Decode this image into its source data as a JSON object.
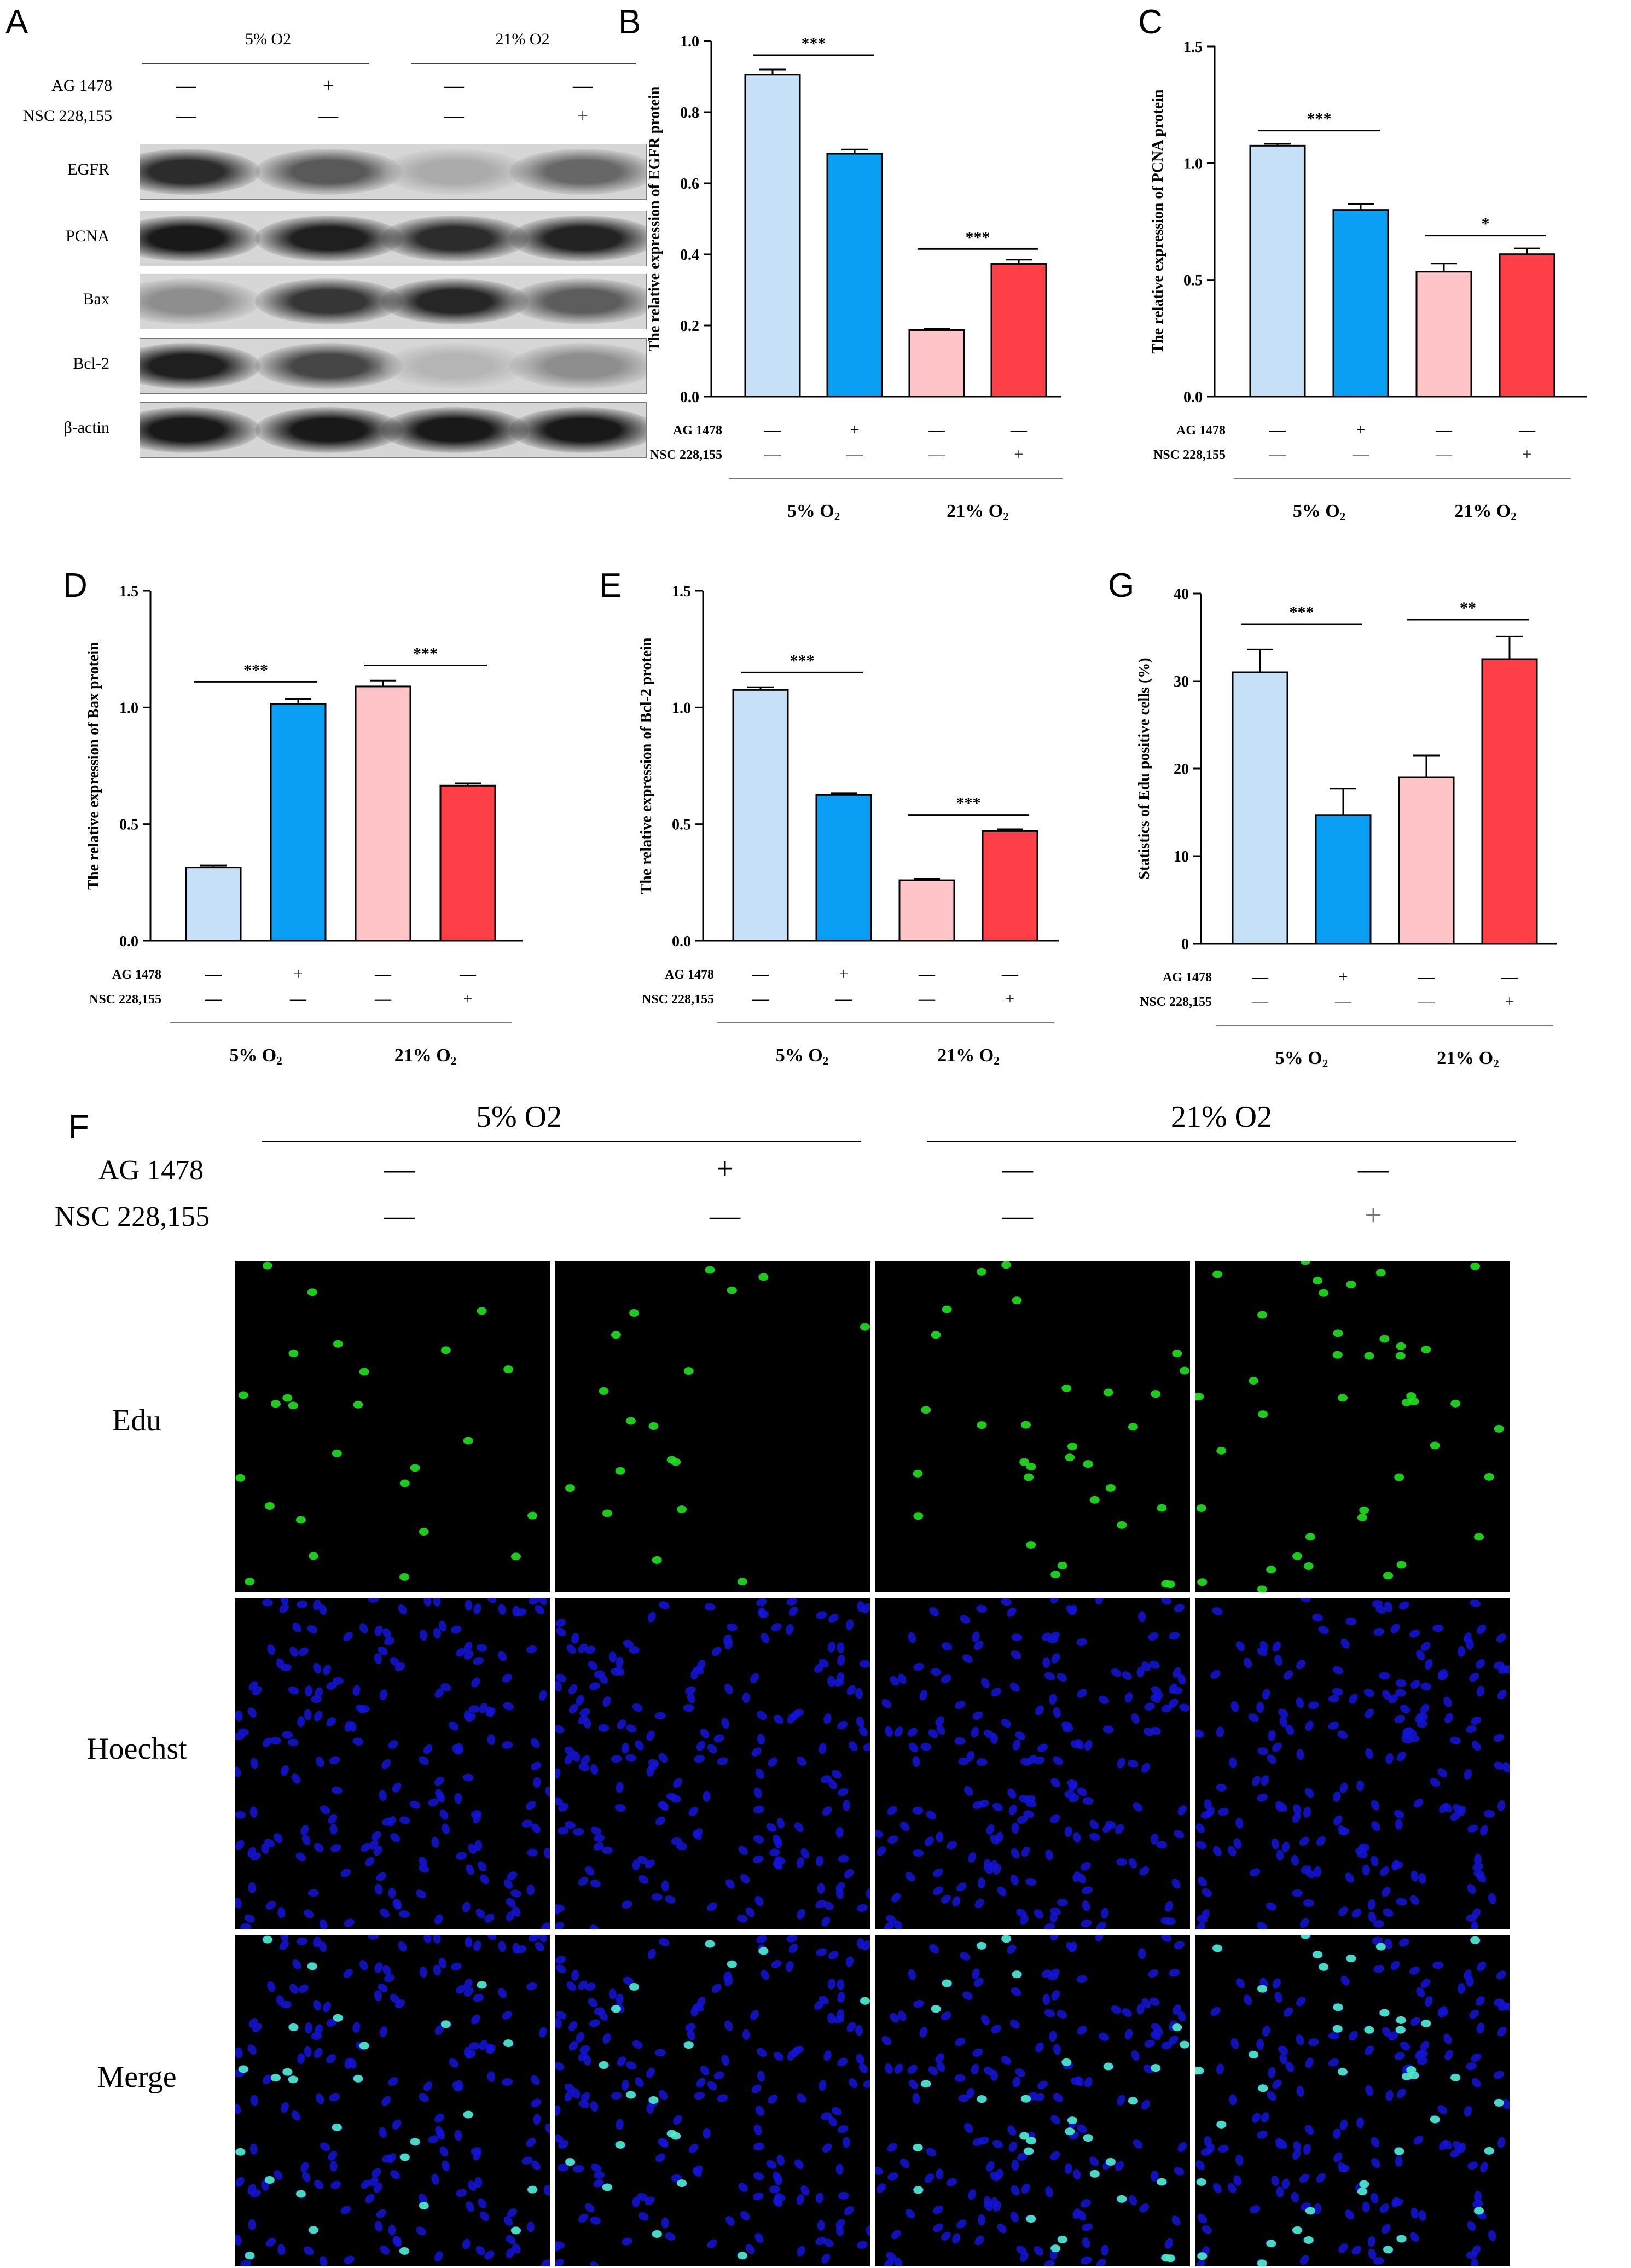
{
  "panel_a": {
    "letter": "A",
    "conditions": [
      "5% O2",
      "21% O2"
    ],
    "treatment_rows": [
      {
        "label": "AG 1478",
        "marks": [
          "—",
          "+",
          "—",
          "—"
        ]
      },
      {
        "label": "NSC 228,155",
        "marks": [
          "—",
          "—",
          "—",
          "+"
        ]
      }
    ],
    "blots": [
      "EGFR",
      "PCNA",
      "Bax",
      "Bcl-2",
      "β-actin"
    ],
    "band_intensity": {
      "EGFR": [
        0.85,
        0.62,
        0.2,
        0.55
      ],
      "PCNA": [
        0.95,
        0.92,
        0.85,
        0.9
      ],
      "Bax": [
        0.35,
        0.8,
        0.88,
        0.6
      ],
      "Bcl-2": [
        0.92,
        0.72,
        0.15,
        0.35
      ],
      "β-actin": [
        0.95,
        0.95,
        0.95,
        0.95
      ]
    }
  },
  "chart_data": [
    {
      "id": "B",
      "type": "bar",
      "ylabel": "The relative expression of EGFR protein",
      "ylim": [
        0,
        1.0
      ],
      "yticks": [
        "0.0",
        "0.2",
        "0.4",
        "0.6",
        "0.8",
        "1.0"
      ],
      "values": [
        0.905,
        0.683,
        0.187,
        0.373
      ],
      "errors": [
        0.015,
        0.012,
        0.004,
        0.012
      ],
      "significance": [
        {
          "from": 0,
          "to": 1,
          "label": "***",
          "y": 0.96
        },
        {
          "from": 2,
          "to": 3,
          "label": "***",
          "y": 0.415
        }
      ],
      "treatments": [
        {
          "label": "AG 1478",
          "marks": [
            "—",
            "+",
            "—",
            "—"
          ]
        },
        {
          "label": "NSC 228,155",
          "marks": [
            "—",
            "—",
            "—",
            "+"
          ]
        }
      ],
      "groups": [
        "5% O2",
        "21% O2"
      ]
    },
    {
      "id": "C",
      "type": "bar",
      "ylabel": "The relative expression of PCNA protein",
      "ylim": [
        0,
        1.5
      ],
      "yticks": [
        "0.0",
        "0.5",
        "1.0",
        "1.5"
      ],
      "values": [
        1.075,
        0.8,
        0.535,
        0.61
      ],
      "errors": [
        0.008,
        0.025,
        0.035,
        0.025
      ],
      "significance": [
        {
          "from": 0,
          "to": 1,
          "label": "***",
          "y": 1.14
        },
        {
          "from": 2,
          "to": 3,
          "label": "*",
          "y": 0.69
        }
      ],
      "treatments": [
        {
          "label": "AG 1478",
          "marks": [
            "—",
            "+",
            "—",
            "—"
          ]
        },
        {
          "label": "NSC 228,155",
          "marks": [
            "—",
            "—",
            "—",
            "+"
          ]
        }
      ],
      "groups": [
        "5% O2",
        "21% O2"
      ]
    },
    {
      "id": "D",
      "type": "bar",
      "ylabel": "The relative expression of Bax protein",
      "ylim": [
        0,
        1.5
      ],
      "yticks": [
        "0.0",
        "0.5",
        "1.0",
        "1.5"
      ],
      "values": [
        0.315,
        1.015,
        1.09,
        0.665
      ],
      "errors": [
        0.008,
        0.022,
        0.025,
        0.01
      ],
      "significance": [
        {
          "from": 0,
          "to": 1,
          "label": "***",
          "y": 1.11
        },
        {
          "from": 2,
          "to": 3,
          "label": "***",
          "y": 1.18
        }
      ],
      "treatments": [
        {
          "label": "AG 1478",
          "marks": [
            "—",
            "+",
            "—",
            "—"
          ]
        },
        {
          "label": "NSC 228,155",
          "marks": [
            "—",
            "—",
            "—",
            "+"
          ]
        }
      ],
      "groups": [
        "5% O2",
        "21% O2"
      ]
    },
    {
      "id": "E",
      "type": "bar",
      "ylabel": "The relative expression of Bcl-2 protein",
      "ylim": [
        0,
        1.5
      ],
      "yticks": [
        "0.0",
        "0.5",
        "1.0",
        "1.5"
      ],
      "values": [
        1.075,
        0.625,
        0.26,
        0.47
      ],
      "errors": [
        0.012,
        0.008,
        0.006,
        0.008
      ],
      "significance": [
        {
          "from": 0,
          "to": 1,
          "label": "***",
          "y": 1.15
        },
        {
          "from": 2,
          "to": 3,
          "label": "***",
          "y": 0.54
        }
      ],
      "treatments": [
        {
          "label": "AG 1478",
          "marks": [
            "—",
            "+",
            "—",
            "—"
          ]
        },
        {
          "label": "NSC 228,155",
          "marks": [
            "—",
            "—",
            "—",
            "+"
          ]
        }
      ],
      "groups": [
        "5% O2",
        "21% O2"
      ]
    },
    {
      "id": "G",
      "type": "bar",
      "ylabel": "Statistics of Edu positive cells (%)",
      "ylim": [
        0,
        40
      ],
      "yticks": [
        "0",
        "10",
        "20",
        "30",
        "40"
      ],
      "values": [
        31,
        14.7,
        19,
        32.5
      ],
      "errors": [
        2.6,
        3.0,
        2.5,
        2.6
      ],
      "significance": [
        {
          "from": 0,
          "to": 1,
          "label": "***",
          "y": 36.5
        },
        {
          "from": 2,
          "to": 3,
          "label": "**",
          "y": 37.0
        }
      ],
      "treatments": [
        {
          "label": "AG 1478",
          "marks": [
            "—",
            "+",
            "—",
            "—"
          ]
        },
        {
          "label": "NSC 228,155",
          "marks": [
            "—",
            "—",
            "—",
            "+"
          ]
        }
      ],
      "groups": [
        "5% O2",
        "21% O2"
      ]
    }
  ],
  "bar_colors": {
    "fill": [
      "#c5e0f7",
      "#0a9ff2",
      "#ffc4c8",
      "#fd3f47"
    ],
    "stroke": "#000000"
  },
  "panel_f": {
    "letter": "F",
    "conditions": [
      "5% O2",
      "21% O2"
    ],
    "treatment_rows": [
      {
        "label": "AG 1478",
        "marks": [
          "—",
          "+",
          "—",
          "—"
        ]
      },
      {
        "label": "NSC 228,155",
        "marks": [
          "—",
          "—",
          "—",
          "+"
        ]
      }
    ],
    "image_rows": [
      {
        "label": "Edu",
        "color": "#22b422"
      },
      {
        "label": "Hoechst",
        "color": "#1a1aff"
      },
      {
        "label": "Merge",
        "color": "#000000"
      }
    ],
    "edu_positive_fraction": [
      0.31,
      0.147,
      0.19,
      0.325
    ]
  }
}
